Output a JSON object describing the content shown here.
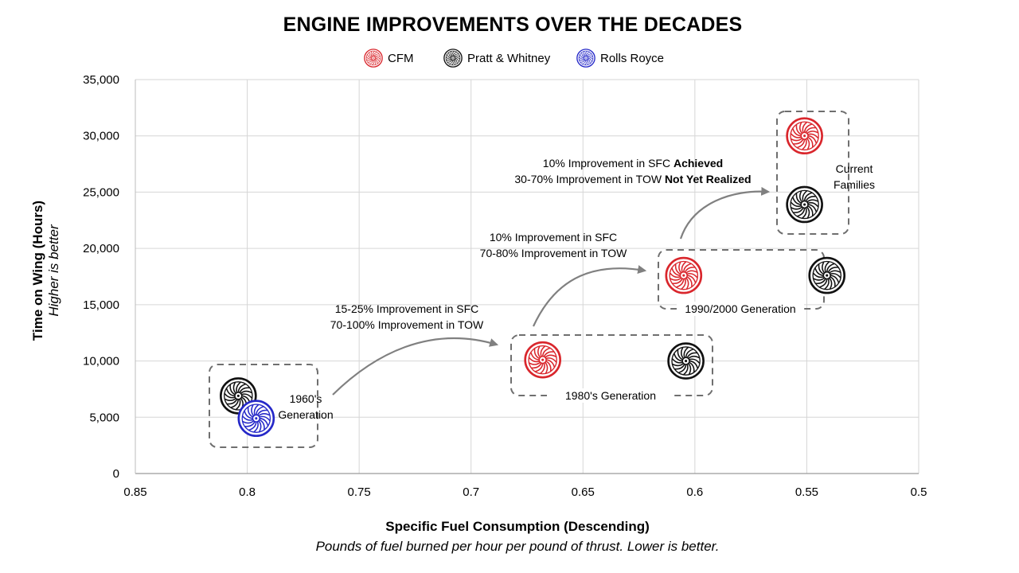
{
  "chart_data": {
    "type": "scatter",
    "title": "ENGINE IMPROVEMENTS OVER THE DECADES",
    "xlabel": "Specific Fuel Consumption (Descending)",
    "xlabel_sub": "Pounds of fuel burned per hour per pound of thrust. Lower is better.",
    "ylabel": "Time on Wing (Hours)",
    "ylabel_sub": "Higher is better",
    "xlim": [
      0.85,
      0.5
    ],
    "x_reversed": true,
    "ylim": [
      0,
      35000
    ],
    "x_ticks": [
      "0.85",
      "0.8",
      "0.75",
      "0.7",
      "0.65",
      "0.6",
      "0.55",
      "0.5"
    ],
    "y_ticks": [
      "0",
      "5,000",
      "10,000",
      "15,000",
      "20,000",
      "25,000",
      "30,000",
      "35,000"
    ],
    "grid": true,
    "legend_position": "top-center",
    "series": [
      {
        "name": "CFM",
        "color": "#d9262c",
        "icon": "turbofan-icon",
        "points": [
          {
            "x": 0.668,
            "y": 10100
          },
          {
            "x": 0.605,
            "y": 17600
          },
          {
            "x": 0.551,
            "y": 30000
          }
        ]
      },
      {
        "name": "Pratt & Whitney",
        "color": "#111111",
        "icon": "turbofan-icon",
        "points": [
          {
            "x": 0.804,
            "y": 6900
          },
          {
            "x": 0.604,
            "y": 10000
          },
          {
            "x": 0.541,
            "y": 17600
          },
          {
            "x": 0.551,
            "y": 23900
          }
        ]
      },
      {
        "name": "Rolls Royce",
        "color": "#2528c8",
        "icon": "turbofan-icon",
        "points": [
          {
            "x": 0.796,
            "y": 4900
          }
        ]
      }
    ],
    "groups": [
      {
        "label": "1960's\nGeneration"
      },
      {
        "label": "1980's Generation"
      },
      {
        "label": "1990/2000 Generation"
      },
      {
        "label": "Current\nFamilies"
      }
    ],
    "annotations": [
      {
        "lines": [
          [
            {
              "t": "15-25% Improvement in SFC",
              "b": false
            }
          ],
          [
            {
              "t": "70-100% Improvement in TOW",
              "b": false
            }
          ]
        ]
      },
      {
        "lines": [
          [
            {
              "t": "10% Improvement in SFC",
              "b": false
            }
          ],
          [
            {
              "t": "70-80% Improvement in TOW",
              "b": false
            }
          ]
        ]
      },
      {
        "lines": [
          [
            {
              "t": "10% Improvement in SFC ",
              "b": false
            },
            {
              "t": "Achieved",
              "b": true
            }
          ],
          [
            {
              "t": "30-70% Improvement in TOW ",
              "b": false
            },
            {
              "t": "Not Yet Realized",
              "b": true
            }
          ]
        ]
      }
    ]
  }
}
